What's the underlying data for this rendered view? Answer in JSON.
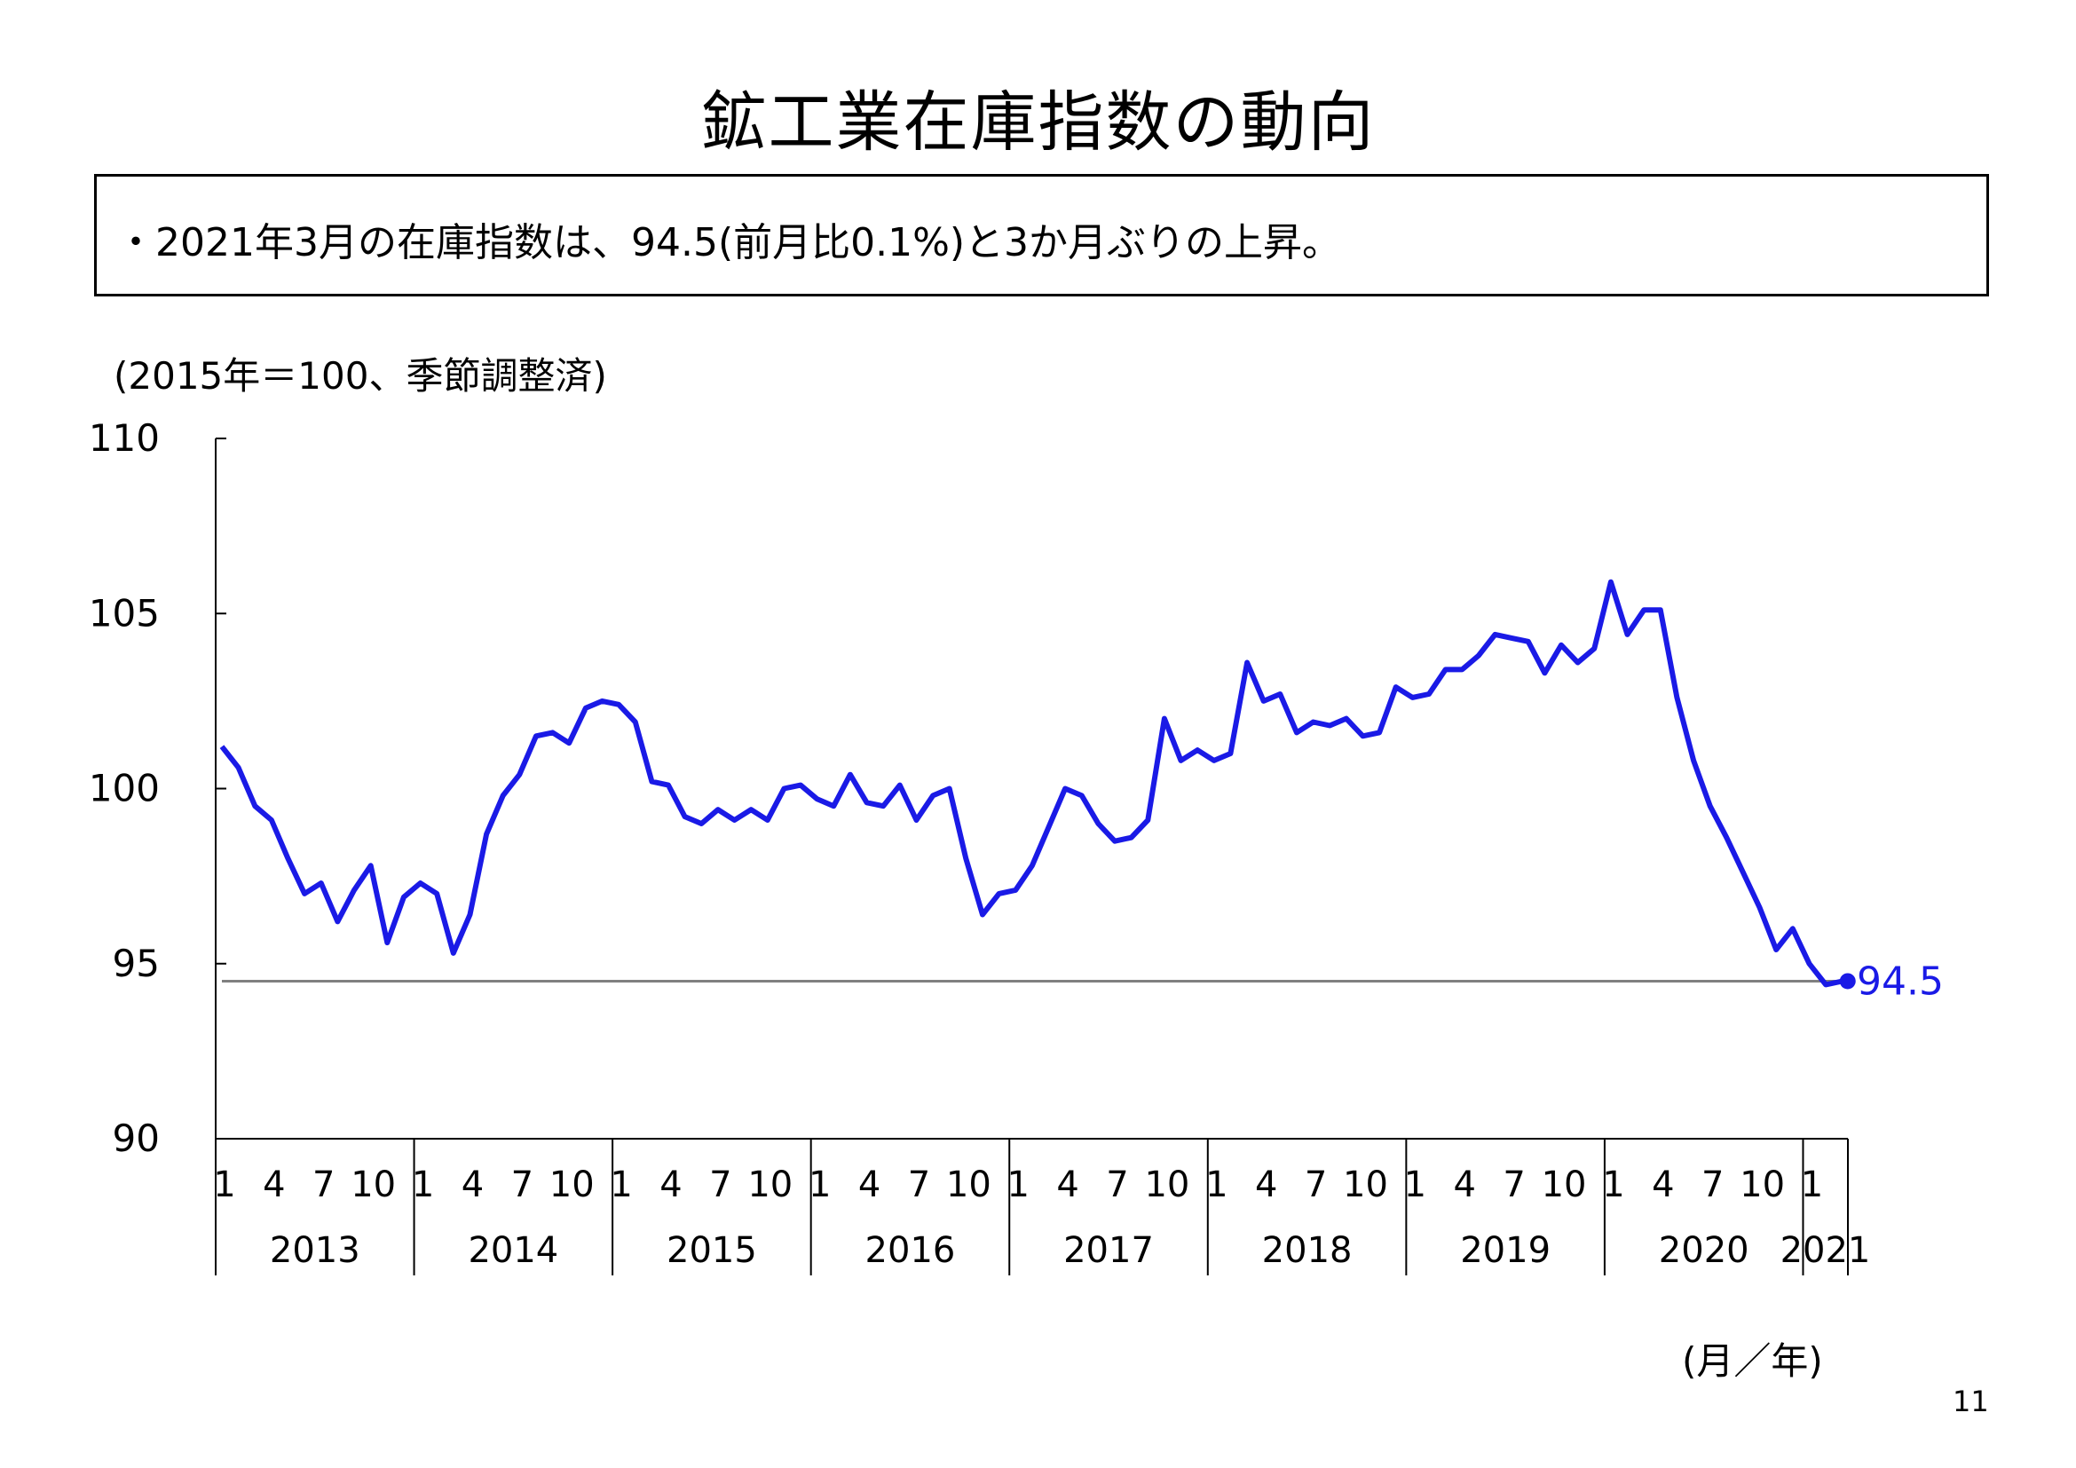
{
  "title": "鉱工業在庫指数の動向",
  "summary": "・2021年3月の在庫指数は、94.5(前月比0.1%)と3か月ぶりの上昇。",
  "page_number": "11",
  "colors": {
    "series": "#1a1ae6",
    "reference_line": "#808080",
    "axis": "#000000"
  },
  "chart_data": {
    "type": "line",
    "unit_label": "(2015年＝100、季節調整済)",
    "x_unit_label": "(月／年)",
    "ylim": [
      90,
      110
    ],
    "yticks": [
      "110",
      "105",
      "100",
      "95",
      "90"
    ],
    "month_ticks": [
      "1",
      "4",
      "7",
      "10"
    ],
    "years": [
      "2013",
      "2014",
      "2015",
      "2016",
      "2017",
      "2018",
      "2019",
      "2020",
      "2021"
    ],
    "last_value_label": "94.5",
    "reference_value": 94.5,
    "grid": false,
    "series": [
      {
        "values": [
          101.2,
          100.6,
          99.5,
          99.1,
          98.0,
          97.0,
          97.3,
          96.2,
          97.1,
          97.8,
          95.6,
          96.9,
          97.3,
          97.0,
          95.3,
          96.4,
          98.7,
          99.8,
          100.4,
          101.5,
          101.6,
          101.3,
          102.3,
          102.5,
          102.4,
          101.9,
          100.2,
          100.1,
          99.2,
          99.0,
          99.4,
          99.1,
          99.4,
          99.1,
          100.0,
          100.1,
          99.7,
          99.5,
          100.4,
          99.6,
          99.5,
          100.1,
          99.1,
          99.8,
          100.0,
          98.0,
          96.4,
          97.0,
          97.1,
          97.8,
          98.9,
          100.0,
          99.8,
          99.0,
          98.5,
          98.6,
          99.1,
          102.0,
          100.8,
          101.1,
          100.8,
          101.0,
          103.6,
          102.5,
          102.7,
          101.6,
          101.9,
          101.8,
          102.0,
          101.5,
          101.6,
          102.9,
          102.6,
          102.7,
          103.4,
          103.4,
          103.8,
          104.4,
          104.3,
          104.2,
          103.3,
          104.1,
          103.6,
          104.0,
          105.9,
          104.4,
          105.1,
          105.1,
          102.6,
          100.8,
          99.5,
          98.6,
          97.6,
          96.6,
          95.4,
          96.0,
          95.0,
          94.4,
          94.5
        ]
      }
    ]
  }
}
